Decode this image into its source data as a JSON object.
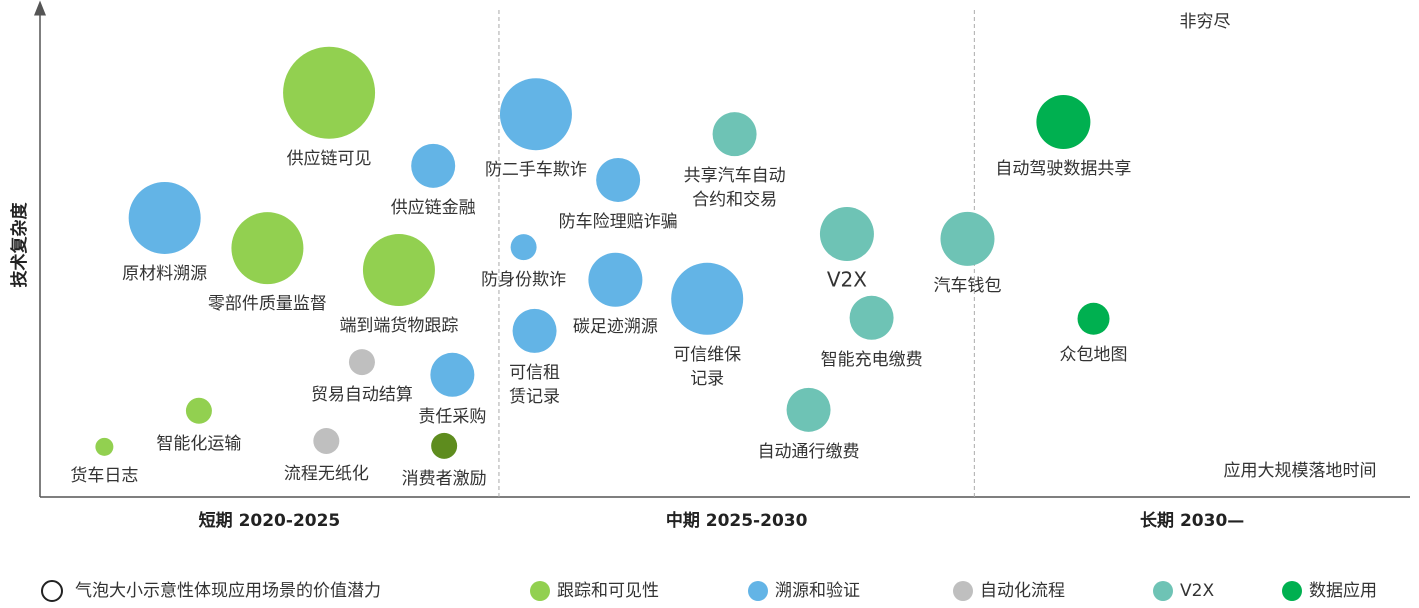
{
  "chart_data": {
    "type": "bubble",
    "note_top": "非穷尽",
    "y_label": "技术复杂度",
    "x_label": "应用大规模落地时间",
    "size_legend": "气泡大小示意性体现应用场景的价值潜力",
    "xlim": [
      0,
      100
    ],
    "ylim": [
      0,
      100
    ],
    "dividers": [
      33.5,
      68.2
    ],
    "periods": [
      "短期  2020-2025",
      "中期  2025-2030",
      "长期  2030—"
    ],
    "series": [
      {
        "name": "跟踪和可见性",
        "color": "#92d050",
        "points": [
          {
            "label": "供应链可见",
            "x": 21.1,
            "y": 83.0,
            "size": 46
          },
          {
            "label": "零部件质量监督",
            "x": 16.6,
            "y": 51.1,
            "size": 36
          },
          {
            "label": "端到端货物跟踪",
            "x": 26.2,
            "y": 46.6,
            "size": 36
          },
          {
            "label": "智能化运输",
            "x": 11.6,
            "y": 17.7,
            "size": 13
          },
          {
            "label": "货车日志",
            "x": 4.7,
            "y": 10.3,
            "size": 9
          },
          {
            "label": "消费者激励",
            "x": 29.5,
            "y": 10.5,
            "size": 13,
            "color": "#5e8c1e"
          }
        ]
      },
      {
        "name": "溯源和验证",
        "color": "#63b4e6",
        "points": [
          {
            "label": "原材料溯源",
            "x": 9.1,
            "y": 57.3,
            "size": 36
          },
          {
            "label": "供应链金融",
            "x": 28.7,
            "y": 68.0,
            "size": 22
          },
          {
            "label": "责任采购",
            "x": 30.1,
            "y": 25.1,
            "size": 22
          },
          {
            "label": "防二手车欺诈",
            "x": 36.2,
            "y": 78.6,
            "size": 36
          },
          {
            "label": "防车险理赔诈骗",
            "x": 42.2,
            "y": 65.1,
            "size": 22
          },
          {
            "label": "防身份欺诈",
            "x": 35.3,
            "y": 51.3,
            "size": 13
          },
          {
            "label": "碳足迹溯源",
            "x": 42.0,
            "y": 44.6,
            "size": 27
          },
          {
            "label": "可信租\n赁记录",
            "x": 36.1,
            "y": 34.1,
            "size": 22
          },
          {
            "label": "可信维保\n记录",
            "x": 48.7,
            "y": 40.7,
            "size": 36
          }
        ]
      },
      {
        "name": "自动化流程",
        "color": "#bfbfbf",
        "points": [
          {
            "label": "贸易自动结算",
            "x": 23.5,
            "y": 27.7,
            "size": 13
          },
          {
            "label": "流程无纸化",
            "x": 20.9,
            "y": 11.5,
            "size": 13
          }
        ]
      },
      {
        "name": "V2X",
        "color": "#6ec3b5",
        "points": [
          {
            "label": "共享汽车自动\n合约和交易",
            "x": 50.7,
            "y": 74.5,
            "size": 22
          },
          {
            "label": "V2X",
            "x": 58.9,
            "y": 54.0,
            "size": 27
          },
          {
            "label": "智能充电缴费",
            "x": 60.7,
            "y": 36.8,
            "size": 22
          },
          {
            "label": "自动通行缴费",
            "x": 56.1,
            "y": 17.9,
            "size": 22
          },
          {
            "label": "汽车钱包",
            "x": 67.7,
            "y": 53.0,
            "size": 27
          }
        ]
      },
      {
        "name": "数据应用",
        "color": "#00b050",
        "points": [
          {
            "label": "自动驾驶数据共享",
            "x": 74.7,
            "y": 77.0,
            "size": 27
          },
          {
            "label": "众包地图",
            "x": 76.9,
            "y": 36.6,
            "size": 16
          }
        ]
      }
    ]
  }
}
